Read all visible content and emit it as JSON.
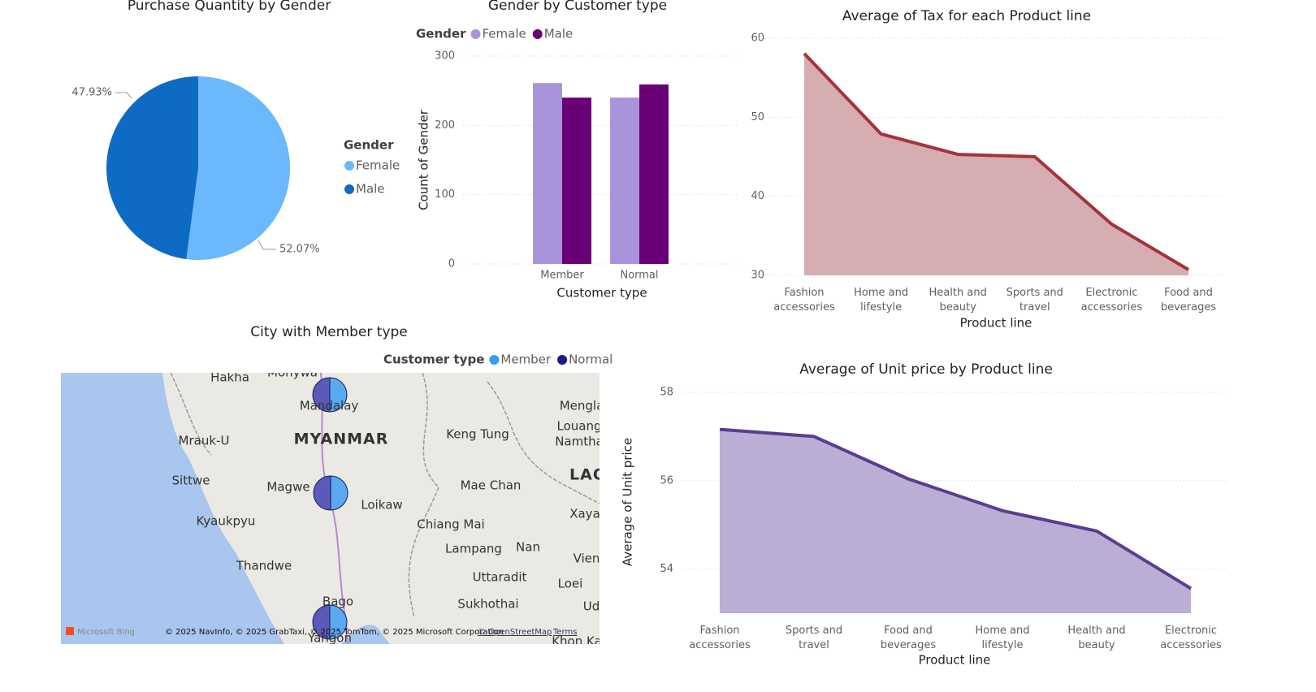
{
  "chart_data": [
    {
      "type": "pie",
      "title": "Purchase Quantity by Gender",
      "legend_title": "Gender",
      "categories": [
        "Female",
        "Male"
      ],
      "values": [
        52.07,
        47.93
      ],
      "value_labels": [
        "52.07%",
        "47.93%"
      ],
      "colors": [
        "#6cb8fc",
        "#0e6bc4"
      ]
    },
    {
      "type": "bar",
      "title": "Gender by Customer type",
      "legend_title": "Gender",
      "categories": [
        "Member",
        "Normal"
      ],
      "x_label": "Customer type",
      "y_label": "Count of Gender",
      "series": [
        {
          "name": "Female",
          "color": "#a994dc",
          "values": [
            261,
            240
          ]
        },
        {
          "name": "Male",
          "color": "#6a0078",
          "values": [
            240,
            259
          ]
        }
      ],
      "ylim": [
        0,
        300
      ],
      "yticks": [
        0,
        100,
        200,
        300
      ],
      "grid": true
    },
    {
      "type": "area",
      "title": "Average of Tax for each Product line",
      "x_label": "Product line",
      "categories": [
        "Fashion accessories",
        "Home and lifestyle",
        "Health and beauty",
        "Sports and travel",
        "Electronic accessories",
        "Food and beverages"
      ],
      "values": [
        58.06,
        47.88,
        45.3,
        45.0,
        36.47,
        30.72
      ],
      "color": "#a4333d",
      "fill": "#d6adb0",
      "ylim": [
        30,
        60
      ],
      "yticks": [
        30,
        40,
        50,
        60
      ],
      "grid": true
    },
    {
      "type": "map",
      "title": "City with Member type",
      "legend_title": "Customer type",
      "series": [
        {
          "name": "Member",
          "color": "#3a9cf0"
        },
        {
          "name": "Normal",
          "color": "#1a1a8c"
        }
      ],
      "map_labels": [
        "Hakha",
        "Monywa",
        "Mandalay",
        "MYANMAR",
        "Mrauk-U",
        "Keng Tung",
        "Mengla",
        "Louang",
        "Namtha",
        "Sittwe",
        "Magwe",
        "Mae Chan",
        "LAO",
        "Kyaukpyu",
        "Loikaw",
        "Xaya",
        "Chiang Mai",
        "Nan",
        "Lampang",
        "Thandwe",
        "Vien",
        "Uttaradit",
        "Loei",
        "Sukhothai",
        "Bago",
        "Ud",
        "Yangon",
        "Khon Ka"
      ],
      "attribution": [
        "Microsoft Bing",
        "© 2025 NavInfo, © 2025 GrabTaxi, © 2025 TomTom, © 2025 Microsoft Corporation",
        "© OpenStreetMap",
        "Terms"
      ]
    },
    {
      "type": "area",
      "title": "Average of Unit price by Product line",
      "x_label": "Product line",
      "y_label": "Average of Unit price",
      "categories": [
        "Fashion accessories",
        "Sports and travel",
        "Food and beverages",
        "Home and lifestyle",
        "Health and beauty",
        "Electronic accessories"
      ],
      "values": [
        57.16,
        57.0,
        56.04,
        55.32,
        54.86,
        53.56
      ],
      "color": "#5b3c92",
      "fill": "#baaed4",
      "ylim": [
        53,
        58
      ],
      "yticks": [
        54,
        56,
        58
      ],
      "grid": true
    }
  ]
}
